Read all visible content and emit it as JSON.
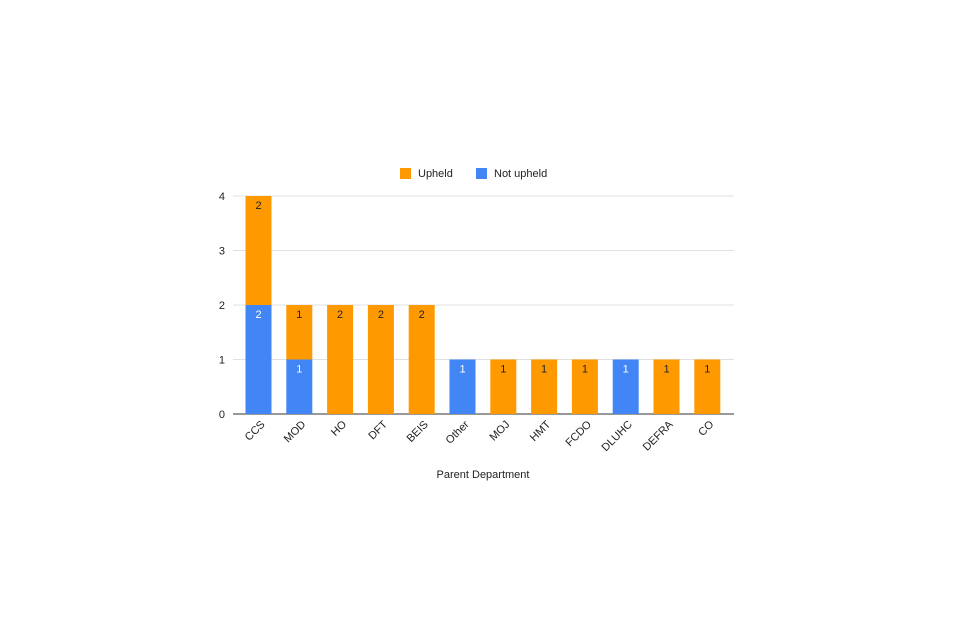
{
  "chart_data": {
    "type": "bar",
    "stacked": true,
    "title": "",
    "xlabel": "Parent Department",
    "ylabel": "",
    "ylim": [
      0,
      4
    ],
    "yticks": [
      0,
      1,
      2,
      3,
      4
    ],
    "grid": true,
    "legend_position": "top",
    "categories": [
      "CCS",
      "MOD",
      "HO",
      "DFT",
      "BEIS",
      "Other",
      "MOJ",
      "HMT",
      "FCDO",
      "DLUHC",
      "DEFRA",
      "CO"
    ],
    "series": [
      {
        "name": "Not upheld",
        "color": "#4285f4",
        "values": [
          2,
          1,
          0,
          0,
          0,
          1,
          0,
          0,
          0,
          1,
          0,
          0
        ]
      },
      {
        "name": "Upheld",
        "color": "#ff9900",
        "values": [
          2,
          1,
          2,
          2,
          2,
          0,
          1,
          1,
          1,
          0,
          1,
          1
        ]
      }
    ],
    "legend_order": [
      "Upheld",
      "Not upheld"
    ]
  }
}
